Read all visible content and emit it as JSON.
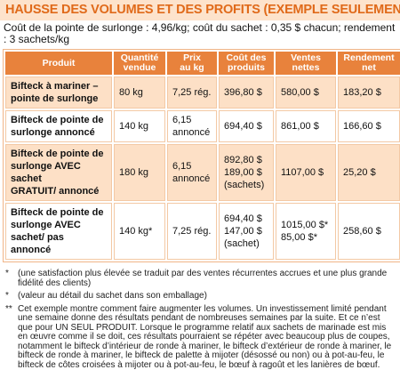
{
  "header": {
    "title": "HAUSSE DES VOLUMES ET DES PROFITS (EXEMPLE SEULEMENT)",
    "intro": "Coût de la  pointe de surlonge : 4,96/kg; coût du sachet : 0,35 $ chacun; rendement : 3 sachets/kg"
  },
  "table": {
    "columns": [
      [
        "Produit"
      ],
      [
        "Quantité",
        "vendue"
      ],
      [
        "Prix",
        "au kg"
      ],
      [
        "Coût des",
        "produits"
      ],
      [
        "Ventes",
        "nettes"
      ],
      [
        "Rendement",
        "net"
      ]
    ],
    "rows": [
      [
        [
          "Bifteck à mariner –",
          "pointe de surlonge"
        ],
        [
          "80 kg"
        ],
        [
          "7,25 rég."
        ],
        [
          "396,80 $"
        ],
        [
          "580,00 $"
        ],
        [
          "183,20 $"
        ]
      ],
      [
        [
          "Bifteck de pointe de",
          "surlonge annoncé"
        ],
        [
          "140 kg"
        ],
        [
          "6,15",
          "annoncé"
        ],
        [
          "694,40 $"
        ],
        [
          "861,00 $"
        ],
        [
          "166,60 $"
        ]
      ],
      [
        [
          "Bifteck de pointe de",
          "surlonge AVEC sachet",
          "GRATUIT/ annoncé"
        ],
        [
          "180 kg"
        ],
        [
          "6,15",
          "annoncé"
        ],
        [
          "892,80 $",
          "189,00 $",
          "(sachets)"
        ],
        [
          "1107,00 $"
        ],
        [
          "25,20 $"
        ]
      ],
      [
        [
          "Bifteck de pointe de",
          "surlonge AVEC",
          "sachet/ pas annoncé"
        ],
        [
          "140 kg*"
        ],
        [
          "7,25 rég."
        ],
        [
          "694,40 $",
          "147,00 $",
          "(sachet)"
        ],
        [
          "1015,00 $*",
          "85,00 $*"
        ],
        [
          "258,60 $"
        ]
      ]
    ]
  },
  "notes": [
    {
      "marker": "*",
      "text": "(une satisfaction plus élevée se traduit par des ventes récurrentes accrues et une plus grande fidélité des clients)"
    },
    {
      "marker": "*",
      "text": "(valeur au détail du sachet dans son emballage)"
    },
    {
      "marker": "**",
      "text": "Cet exemple montre comment faire augmenter les volumes. Un investissement limité pendant une semaine donne des résultats pendant de nombreuses semaines par la suite. Et ce n’est que pour UN SEUL PRODUIT. Lorsque le programme relatif aux sachets de marinade est mis en œuvre comme il se doit, ces résultats pourraient se répéter avec beaucoup plus de coupes, notamment le bifteck d’intérieur de ronde à mariner, le bifteck d’extérieur de ronde à mariner, le bifteck de ronde à mariner, le bifteck de palette à mijoter (désossé ou non) ou à pot-au-feu, le bifteck de côtes croisées à mijoter ou à pot-au-feu, le bœuf à ragoût et les lanières de bœuf."
    }
  ]
}
